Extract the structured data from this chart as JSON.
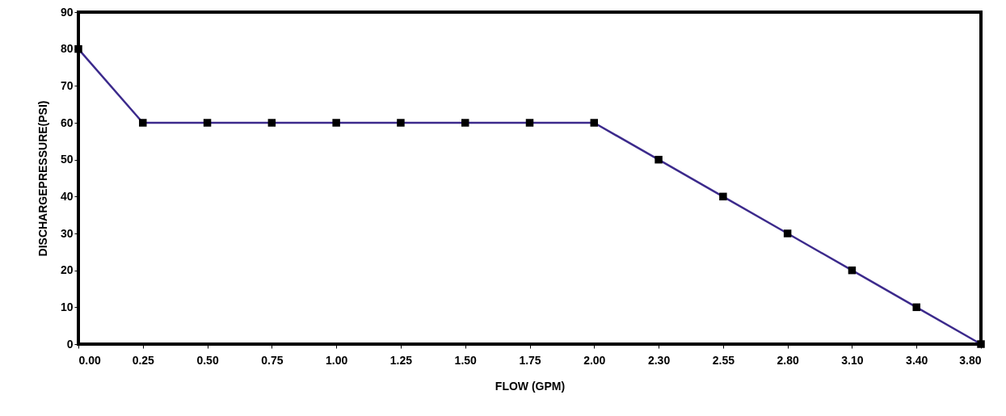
{
  "chart_data": {
    "type": "line",
    "xlabel": "FLOW (GPM)",
    "ylabel": "DISCHARGEPRESSURE(PSI)",
    "categories": [
      "0.00",
      "0.25",
      "0.50",
      "0.75",
      "1.00",
      "1.25",
      "1.50",
      "1.75",
      "2.00",
      "2.30",
      "2.55",
      "2.80",
      "3.10",
      "3.40",
      "3.80"
    ],
    "series": [
      {
        "color": "#3c2a8c",
        "values": [
          80,
          60,
          60,
          60,
          60,
          60,
          60,
          60,
          60,
          50,
          40,
          30,
          20,
          10,
          0
        ]
      }
    ],
    "ylim": [
      0,
      90
    ],
    "yticks": [
      0,
      10,
      20,
      30,
      40,
      50,
      60,
      70,
      80,
      90
    ],
    "grid": false,
    "marker": "square",
    "line_style": "solid"
  }
}
